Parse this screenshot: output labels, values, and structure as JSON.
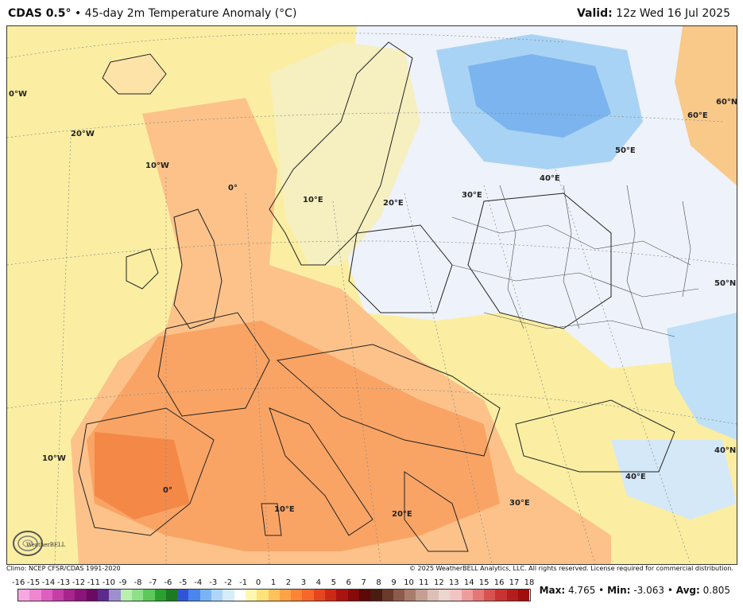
{
  "header": {
    "model": "CDAS 0.5°",
    "separator": "•",
    "product": "45-day 2m Temperature Anomaly (°C)",
    "valid_label": "Valid:",
    "valid_time": "12z Wed 16 Jul 2025"
  },
  "grid_labels": {
    "lon_0w_top": "0°W",
    "lon_20w": "20°W",
    "lon_10w_top": "10°W",
    "lon_0_mid": "0°",
    "lon_10e_top": "10°E",
    "lon_20e_top": "20°E",
    "lon_30e_top": "30°E",
    "lon_40e_top": "40°E",
    "lon_50e_top": "50°E",
    "lat_60e": "60°E",
    "lat_60n": "60°N",
    "lat_50n": "50°N",
    "lat_40n": "40°N",
    "lon_10w_bottom": "10°W",
    "lon_0_bottom": "0°",
    "lon_10e_bottom": "10°E",
    "lon_20e_bottom": "20°E",
    "lon_30e_bottom": "30°E",
    "lon_40e_bottom": "40°E"
  },
  "footer": {
    "climo": "Climo: NCEP CFSR/CDAS 1991-2020",
    "copyright": "© 2025 WeatherBELL Analytics, LLC. All rights reserved. License required for commercial distribution."
  },
  "logo_text": "WeatherBELL",
  "legend": {
    "labels": [
      "-16",
      "-15",
      "-14",
      "-13",
      "-12",
      "-11",
      "-10",
      "-9",
      "-8",
      "-7",
      "-6",
      "-5",
      "-4",
      "-3",
      "-2",
      "-1",
      "0",
      "1",
      "2",
      "3",
      "4",
      "5",
      "6",
      "7",
      "8",
      "9",
      "10",
      "11",
      "12",
      "13",
      "14",
      "15",
      "16",
      "17",
      "18"
    ],
    "colors": [
      "#f7a8e0",
      "#ef86d2",
      "#dd5fc0",
      "#c43ea6",
      "#a6258d",
      "#8a1479",
      "#6a0a62",
      "#5c2a8c",
      "#9e8fd0",
      "#b9f0b0",
      "#8fe08a",
      "#5cc85a",
      "#2aa030",
      "#1c7a22",
      "#2f55d6",
      "#4a86ee",
      "#7ab4f4",
      "#aed6f8",
      "#d6ecfb",
      "#ffffff",
      "#fff7b0",
      "#ffe27a",
      "#ffc25a",
      "#ffa247",
      "#ff8435",
      "#f7662a",
      "#e6461f",
      "#cc2a16",
      "#aa1410",
      "#880a0a",
      "#5e0808",
      "#4a1b10",
      "#6b3a2a",
      "#8c5a48",
      "#a87d6c",
      "#c49f92",
      "#dcc0b6",
      "#ecd6d0",
      "#f2c4c4",
      "#ee9d9d",
      "#e67777",
      "#d85252",
      "#c83232",
      "#b51d1d",
      "#a00e0e"
    ],
    "color_count_note": ""
  },
  "stats": {
    "max_label": "Max:",
    "max_value": "4.765",
    "min_label": "Min:",
    "min_value": "-3.063",
    "avg_label": "Avg:",
    "avg_value": "0.805",
    "sep": "•"
  }
}
